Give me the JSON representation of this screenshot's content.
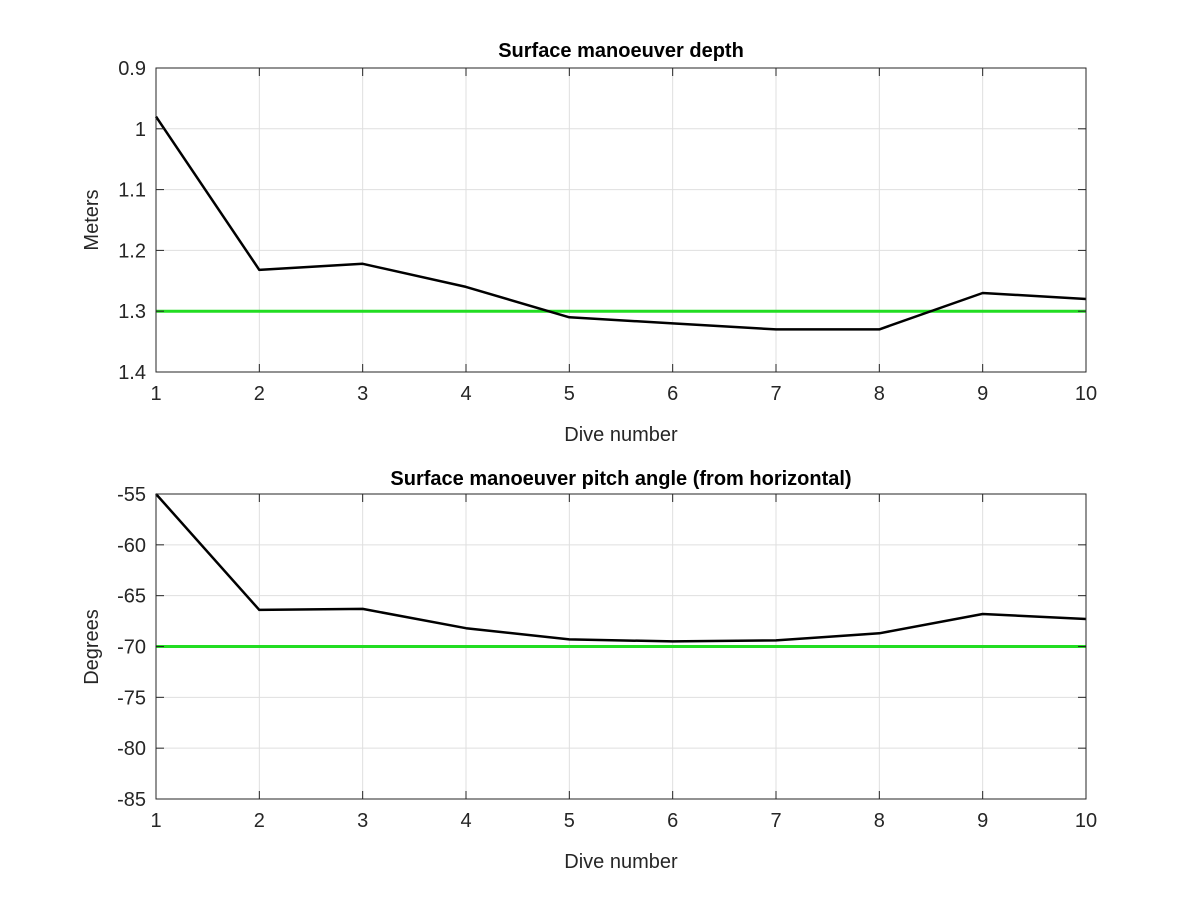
{
  "chart_data": [
    {
      "type": "line",
      "title": "Surface manoeuver depth",
      "xlabel": "Dive number",
      "ylabel": "Meters",
      "xlim": [
        1,
        10
      ],
      "ylim": [
        0.9,
        1.4
      ],
      "y_reversed": true,
      "x_ticks": [
        1,
        2,
        3,
        4,
        5,
        6,
        7,
        8,
        9,
        10
      ],
      "y_ticks": [
        0.9,
        1,
        1.1,
        1.2,
        1.3,
        1.4
      ],
      "y_tick_labels": [
        "0.9",
        "1",
        "1.1",
        "1.2",
        "1.3",
        "1.4"
      ],
      "grid": true,
      "x": [
        1,
        2,
        3,
        4,
        5,
        6,
        7,
        8,
        9,
        10
      ],
      "series": [
        {
          "color": "#000000",
          "values": [
            0.98,
            1.232,
            1.222,
            1.26,
            1.31,
            1.32,
            1.33,
            1.33,
            1.27,
            1.28
          ]
        }
      ],
      "reference_line": {
        "y": 1.3,
        "color": "#22dd22"
      }
    },
    {
      "type": "line",
      "title": "Surface manoeuver pitch angle (from horizontal)",
      "xlabel": "Dive number",
      "ylabel": "Degrees",
      "xlim": [
        1,
        10
      ],
      "ylim": [
        -85,
        -55
      ],
      "y_reversed": false,
      "x_ticks": [
        1,
        2,
        3,
        4,
        5,
        6,
        7,
        8,
        9,
        10
      ],
      "y_ticks": [
        -85,
        -80,
        -75,
        -70,
        -65,
        -60,
        -55
      ],
      "y_tick_labels": [
        "-85",
        "-80",
        "-75",
        "-70",
        "-65",
        "-60",
        "-55"
      ],
      "grid": true,
      "x": [
        1,
        2,
        3,
        4,
        5,
        6,
        7,
        8,
        9,
        10
      ],
      "series": [
        {
          "color": "#000000",
          "values": [
            -55,
            -66.4,
            -66.3,
            -68.2,
            -69.3,
            -69.5,
            -69.4,
            -68.7,
            -66.8,
            -67.3
          ]
        }
      ],
      "reference_line": {
        "y": -70,
        "color": "#22dd22"
      }
    }
  ]
}
